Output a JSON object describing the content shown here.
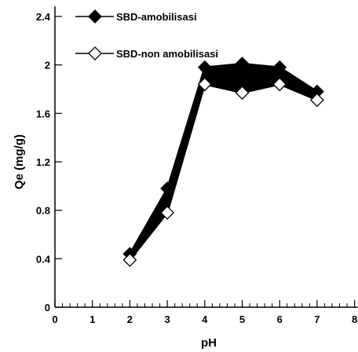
{
  "chart_data": {
    "type": "line",
    "title": "",
    "xlabel": "pH",
    "ylabel": "Qe (mg/g)",
    "xlim": [
      0,
      8
    ],
    "ylim": [
      0,
      2.5
    ],
    "x_ticks": [
      "0",
      "1",
      "2",
      "3",
      "4",
      "5",
      "6",
      "7",
      "8"
    ],
    "y_ticks": [
      "0",
      "0.4",
      "0.8",
      "1.2",
      "1.6",
      "2",
      "2.4"
    ],
    "grid": false,
    "legend_position": "top-left",
    "x": [
      2,
      3,
      4,
      5,
      6,
      7
    ],
    "series": [
      {
        "name": "SBD-amobilisasi",
        "marker": "filled-diamond",
        "color": "#000000",
        "values": [
          0.44,
          0.98,
          1.98,
          2.01,
          1.98,
          1.78
        ]
      },
      {
        "name": "SBD-non amobilisasi",
        "marker": "open-diamond",
        "color": "#000000",
        "values": [
          0.39,
          0.78,
          1.84,
          1.77,
          1.84,
          1.71
        ]
      }
    ],
    "band_fill": "#000000"
  }
}
